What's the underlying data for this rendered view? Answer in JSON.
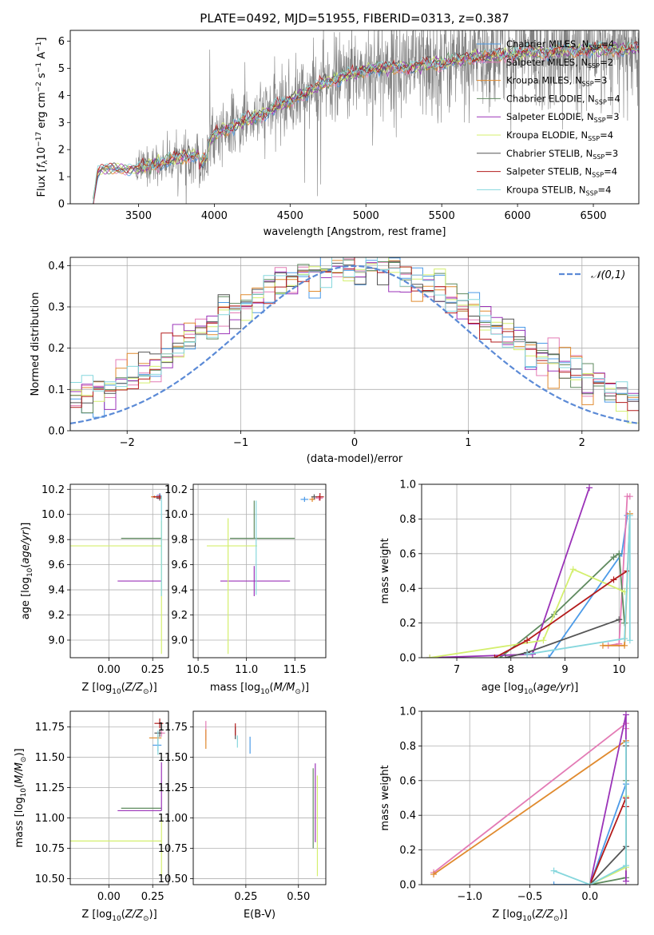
{
  "figure_title": "PLATE=0492, MJD=51955, FIBERID=0313, z=0.387",
  "colors": {
    "Chabrier MILES": "#4c9be8",
    "Salpeter MILES": "#e37bb5",
    "Kroupa MILES": "#e08a2e",
    "Chabrier ELODIE": "#5f8a5f",
    "Salpeter ELODIE": "#9b33b8",
    "Kroupa ELODIE": "#d4ef6e",
    "Chabrier STELIB": "#555555",
    "Salpeter STELIB": "#b31b1b",
    "Kroupa STELIB": "#86d7dd",
    "data": "#808080",
    "normal": "#5b8ad6"
  },
  "chart_data": [
    {
      "id": "spectrum",
      "type": "line",
      "title": "PLATE=0492, MJD=51955, FIBERID=0313, z=0.387",
      "xlabel": "wavelength [Angstrom, rest frame]",
      "ylabel": "Flux [f_λ 10^-17 erg cm^-2 s^-1 A^-1]",
      "xlim": [
        3050,
        6800
      ],
      "ylim": [
        0,
        6.4
      ],
      "xticks": [
        3500,
        4000,
        4500,
        5000,
        5500,
        6000,
        6500
      ],
      "yticks": [
        0,
        1,
        2,
        3,
        4,
        5,
        6
      ],
      "legend": [
        {
          "name": "Chabrier MILES",
          "nssp": "4"
        },
        {
          "name": "Salpeter MILES",
          "nssp": "2"
        },
        {
          "name": "Kroupa MILES",
          "nssp": "3"
        },
        {
          "name": "Chabrier ELODIE",
          "nssp": "4"
        },
        {
          "name": "Salpeter ELODIE",
          "nssp": "3"
        },
        {
          "name": "Kroupa ELODIE",
          "nssp": "4"
        },
        {
          "name": "Chabrier STELIB",
          "nssp": "3"
        },
        {
          "name": "Salpeter STELIB",
          "nssp": "4"
        },
        {
          "name": "Kroupa STELIB",
          "nssp": "4"
        }
      ],
      "legend_placement": "right",
      "continuum": {
        "x": [
          3200,
          3230,
          3260,
          3300,
          3400,
          3500,
          3600,
          3700,
          3800,
          3900,
          3950,
          4000,
          4100,
          4200,
          4300,
          4400,
          4500,
          4600,
          4700,
          4800,
          4900,
          5000,
          5100,
          5200,
          5300,
          5400,
          5500,
          5600,
          5700,
          5800,
          5900,
          6000,
          6100,
          6200,
          6300,
          6400,
          6500,
          6600,
          6700,
          6800
        ],
        "y": [
          0,
          1.15,
          1.28,
          1.3,
          1.28,
          1.3,
          1.45,
          1.6,
          1.75,
          1.85,
          2.1,
          2.55,
          2.8,
          3.05,
          3.25,
          3.55,
          3.8,
          4.1,
          4.4,
          4.6,
          4.8,
          4.95,
          5.0,
          5.05,
          5.05,
          5.15,
          5.2,
          5.3,
          5.4,
          5.45,
          5.5,
          5.55,
          5.6,
          5.6,
          5.65,
          5.65,
          5.7,
          5.7,
          5.72,
          5.72
        ]
      },
      "data_noise_start": 3480
    },
    {
      "id": "residuals",
      "type": "histogram",
      "xlabel": "(data-model)/error",
      "ylabel": "Normed distribution",
      "xlim": [
        -2.5,
        2.5
      ],
      "ylim": [
        0,
        0.42
      ],
      "xticks": [
        -2,
        -1,
        0,
        1,
        2
      ],
      "yticks": [
        0.0,
        0.1,
        0.2,
        0.3,
        0.4
      ],
      "legend": [
        {
          "name": "𝒩(0,1)"
        }
      ],
      "legend_placement": "top-right",
      "bin_width": 0.1
    },
    {
      "id": "age-vs-Z",
      "type": "errorbar",
      "xlabel": "Z [log10(Z/Z⊙)]",
      "ylabel": "age  [log10(age/yr)]",
      "xlim": [
        -0.22,
        0.34
      ],
      "ylim": [
        8.86,
        10.24
      ],
      "xticks": [
        0.0,
        0.25
      ],
      "yticks": [
        9.0,
        9.2,
        9.4,
        9.6,
        9.8,
        10.0,
        10.2
      ],
      "points": [
        {
          "series": "Chabrier MILES",
          "x": 0.29,
          "y": 10.15,
          "xerr": [
            0.02,
            0.01
          ],
          "yerr": [
            0.02,
            0.02
          ]
        },
        {
          "series": "Salpeter MILES",
          "x": 0.28,
          "y": 10.14,
          "xerr": [
            0.02,
            0.02
          ],
          "yerr": [
            0.02,
            0.02
          ]
        },
        {
          "series": "Kroupa MILES",
          "x": 0.26,
          "y": 10.14,
          "xerr": [
            0.02,
            0.02
          ],
          "yerr": [
            0.01,
            0.01
          ]
        },
        {
          "series": "Chabrier ELODIE",
          "x": 0.07,
          "y": 9.81,
          "xerr": [
            0.0,
            0.23
          ],
          "yerr": [
            0.0,
            0.0
          ]
        },
        {
          "series": "Salpeter ELODIE",
          "x": 0.05,
          "y": 9.47,
          "xerr": [
            0.0,
            0.25
          ],
          "yerr": [
            0.0,
            0.0
          ]
        },
        {
          "series": "Kroupa ELODIE",
          "x": 0.3,
          "y": 9.75,
          "xerr": [
            0.52,
            0.0
          ],
          "yerr": [
            0.86,
            0.2
          ]
        },
        {
          "series": "Chabrier STELIB",
          "x": 0.29,
          "y": 10.13,
          "xerr": [
            0.02,
            0.01
          ],
          "yerr": [
            0.02,
            0.02
          ]
        },
        {
          "series": "Salpeter STELIB",
          "x": 0.29,
          "y": 10.14,
          "xerr": [
            0.04,
            0.01
          ],
          "yerr": [
            0.02,
            0.02
          ]
        },
        {
          "series": "Kroupa STELIB",
          "x": 0.3,
          "y": 10.0,
          "xerr": [
            0.0,
            0.0
          ],
          "yerr": [
            0.65,
            0.15
          ]
        }
      ]
    },
    {
      "id": "age-vs-mass",
      "type": "errorbar",
      "xlabel": "mass [log10(M/M⊙)]",
      "ylabel": "",
      "xlim": [
        10.45,
        11.82
      ],
      "ylim": [
        8.86,
        10.24
      ],
      "xticks": [
        10.5,
        11.0,
        11.5
      ],
      "yticks": [
        9.0,
        9.2,
        9.4,
        9.6,
        9.8,
        10.0,
        10.2
      ],
      "points": [
        {
          "series": "Chabrier MILES",
          "x": 11.6,
          "y": 10.12,
          "xerr": [
            0.04,
            0.04
          ],
          "yerr": [
            0.02,
            0.02
          ]
        },
        {
          "series": "Salpeter MILES",
          "x": 11.75,
          "y": 10.13,
          "xerr": [
            0.04,
            0.04
          ],
          "yerr": [
            0.02,
            0.02
          ]
        },
        {
          "series": "Kroupa MILES",
          "x": 11.68,
          "y": 10.12,
          "xerr": [
            0.03,
            0.03
          ],
          "yerr": [
            0.02,
            0.02
          ]
        },
        {
          "series": "Chabrier ELODIE",
          "x": 11.08,
          "y": 9.81,
          "xerr": [
            0.25,
            0.42
          ],
          "yerr": [
            0.0,
            0.3
          ]
        },
        {
          "series": "Salpeter ELODIE",
          "x": 11.08,
          "y": 9.47,
          "xerr": [
            0.35,
            0.37
          ],
          "yerr": [
            0.12,
            0.12
          ]
        },
        {
          "series": "Kroupa ELODIE",
          "x": 10.81,
          "y": 9.75,
          "xerr": [
            0.22,
            0.3
          ],
          "yerr": [
            0.86,
            0.22
          ]
        },
        {
          "series": "Chabrier STELIB",
          "x": 11.7,
          "y": 10.14,
          "xerr": [
            0.03,
            0.03
          ],
          "yerr": [
            0.02,
            0.02
          ]
        },
        {
          "series": "Salpeter STELIB",
          "x": 11.76,
          "y": 10.14,
          "xerr": [
            0.04,
            0.04
          ],
          "yerr": [
            0.03,
            0.03
          ]
        },
        {
          "series": "Kroupa STELIB",
          "x": 11.1,
          "y": 9.81,
          "xerr": [
            0.0,
            0.0
          ],
          "yerr": [
            0.45,
            0.3
          ]
        }
      ]
    },
    {
      "id": "weight-vs-age",
      "type": "line",
      "xlabel": "age  [log10(age/yr)]",
      "ylabel": "mass weight",
      "xlim": [
        6.35,
        10.35
      ],
      "ylim": [
        0.0,
        1.0
      ],
      "xticks": [
        7,
        8,
        9,
        10
      ],
      "yticks": [
        0.0,
        0.2,
        0.4,
        0.6,
        0.8,
        1.0
      ],
      "series": [
        {
          "name": "Chabrier MILES",
          "x": [
            8.7,
            10.05,
            10.15
          ],
          "y": [
            0.0,
            0.6,
            0.82
          ]
        },
        {
          "name": "Salpeter MILES",
          "x": [
            9.8,
            10.0,
            10.15,
            10.2
          ],
          "y": [
            0.07,
            0.08,
            0.93,
            0.93
          ]
        },
        {
          "name": "Kroupa MILES",
          "x": [
            9.7,
            10.1,
            10.2
          ],
          "y": [
            0.07,
            0.07,
            0.83
          ]
        },
        {
          "name": "Chabrier ELODIE",
          "x": [
            7.8,
            8.8,
            9.9,
            10.0,
            10.1
          ],
          "y": [
            0.0,
            0.25,
            0.58,
            0.6,
            0.2
          ]
        },
        {
          "name": "Salpeter ELODIE",
          "x": [
            6.5,
            8.4,
            9.45
          ],
          "y": [
            0.0,
            0.02,
            0.98
          ]
        },
        {
          "name": "Kroupa ELODIE",
          "x": [
            6.5,
            8.6,
            9.15,
            10.1
          ],
          "y": [
            0.0,
            0.1,
            0.51,
            0.38
          ]
        },
        {
          "name": "Chabrier STELIB",
          "x": [
            7.9,
            8.3,
            10.0
          ],
          "y": [
            0.0,
            0.03,
            0.22
          ]
        },
        {
          "name": "Salpeter STELIB",
          "x": [
            7.7,
            8.3,
            9.9,
            10.15
          ],
          "y": [
            0.0,
            0.1,
            0.45,
            0.5
          ]
        },
        {
          "name": "Kroupa STELIB",
          "x": [
            8.3,
            10.1,
            10.2,
            10.2
          ],
          "y": [
            0.02,
            0.11,
            0.82,
            0.1
          ]
        }
      ]
    },
    {
      "id": "mass-vs-Z",
      "type": "errorbar",
      "xlabel": "Z [log10(Z/Z⊙)]",
      "ylabel": "mass [log10(M/M⊙)]",
      "xlim": [
        -0.22,
        0.34
      ],
      "ylim": [
        10.45,
        11.88
      ],
      "xticks": [
        0.0,
        0.25
      ],
      "yticks": [
        10.5,
        10.75,
        11.0,
        11.25,
        11.5,
        11.75
      ],
      "points": [
        {
          "series": "Chabrier MILES",
          "x": 0.28,
          "y": 11.6,
          "xerr": [
            0.03,
            0.02
          ],
          "yerr": [
            0.05,
            0.05
          ]
        },
        {
          "series": "Salpeter MILES",
          "x": 0.3,
          "y": 11.7,
          "xerr": [
            0.02,
            0.02
          ],
          "yerr": [
            0.03,
            0.03
          ]
        },
        {
          "series": "Kroupa MILES",
          "x": 0.28,
          "y": 11.66,
          "xerr": [
            0.05,
            0.02
          ],
          "yerr": [
            0.02,
            0.02
          ]
        },
        {
          "series": "Chabrier ELODIE",
          "x": 0.3,
          "y": 11.08,
          "xerr": [
            0.23,
            0.0
          ],
          "yerr": [
            0.0,
            0.0
          ]
        },
        {
          "series": "Salpeter ELODIE",
          "x": 0.3,
          "y": 11.06,
          "xerr": [
            0.25,
            0.0
          ],
          "yerr": [
            0.0,
            0.4
          ]
        },
        {
          "series": "Kroupa ELODIE",
          "x": 0.3,
          "y": 10.81,
          "xerr": [
            0.52,
            0.0
          ],
          "yerr": [
            0.3,
            0.2
          ]
        },
        {
          "series": "Chabrier STELIB",
          "x": 0.29,
          "y": 11.7,
          "xerr": [
            0.03,
            0.01
          ],
          "yerr": [
            0.03,
            0.03
          ]
        },
        {
          "series": "Salpeter STELIB",
          "x": 0.29,
          "y": 11.78,
          "xerr": [
            0.03,
            0.02
          ],
          "yerr": [
            0.04,
            0.04
          ]
        },
        {
          "series": "Kroupa STELIB",
          "x": 0.28,
          "y": 11.62,
          "xerr": [
            0.0,
            0.0
          ],
          "yerr": [
            0.1,
            0.1
          ]
        }
      ]
    },
    {
      "id": "mass-vs-ebv",
      "type": "errorbar",
      "xlabel": "E(B-V)",
      "ylabel": "",
      "xlim": [
        0.0,
        0.63
      ],
      "ylim": [
        10.45,
        11.88
      ],
      "xticks": [
        0.25,
        0.5
      ],
      "yticks": [
        10.5,
        10.75,
        11.0,
        11.25,
        11.5,
        11.75
      ],
      "points": [
        {
          "series": "Chabrier MILES",
          "x": 0.27,
          "y": 11.6,
          "xerr": [
            0.0,
            0.0
          ],
          "yerr": [
            0.07,
            0.07
          ]
        },
        {
          "series": "Salpeter MILES",
          "x": 0.06,
          "y": 11.72,
          "xerr": [
            0.0,
            0.0
          ],
          "yerr": [
            0.08,
            0.08
          ]
        },
        {
          "series": "Kroupa MILES",
          "x": 0.06,
          "y": 11.65,
          "xerr": [
            0.0,
            0.0
          ],
          "yerr": [
            0.08,
            0.08
          ]
        },
        {
          "series": "Chabrier ELODIE",
          "x": 0.57,
          "y": 11.08,
          "xerr": [
            0.0,
            0.0
          ],
          "yerr": [
            0.33,
            0.33
          ]
        },
        {
          "series": "Salpeter ELODIE",
          "x": 0.58,
          "y": 11.1,
          "xerr": [
            0.0,
            0.0
          ],
          "yerr": [
            0.3,
            0.35
          ]
        },
        {
          "series": "Kroupa ELODIE",
          "x": 0.59,
          "y": 10.9,
          "xerr": [
            0.0,
            0.0
          ],
          "yerr": [
            0.38,
            0.45
          ]
        },
        {
          "series": "Chabrier STELIB",
          "x": 0.2,
          "y": 11.7,
          "xerr": [
            0.0,
            0.0
          ],
          "yerr": [
            0.05,
            0.05
          ]
        },
        {
          "series": "Salpeter STELIB",
          "x": 0.2,
          "y": 11.73,
          "xerr": [
            0.0,
            0.0
          ],
          "yerr": [
            0.05,
            0.05
          ]
        },
        {
          "series": "Kroupa STELIB",
          "x": 0.21,
          "y": 11.63,
          "xerr": [
            0.0,
            0.0
          ],
          "yerr": [
            0.05,
            0.05
          ]
        }
      ]
    },
    {
      "id": "weight-vs-Z",
      "type": "line",
      "xlabel": "Z [log10(Z/Z⊙)]",
      "ylabel": "mass weight",
      "xlim": [
        -1.4,
        0.4
      ],
      "ylim": [
        0.0,
        1.0
      ],
      "xticks": [
        -1.0,
        -0.5,
        0.0
      ],
      "yticks": [
        0.0,
        0.2,
        0.4,
        0.6,
        0.8,
        1.0
      ],
      "series": [
        {
          "name": "Chabrier MILES",
          "x": [
            -0.3,
            0.0,
            0.3,
            0.3
          ],
          "y": [
            0.0,
            0.0,
            0.58,
            0.82
          ]
        },
        {
          "name": "Salpeter MILES",
          "x": [
            -1.3,
            0.3,
            0.3
          ],
          "y": [
            0.07,
            0.93,
            0.9
          ]
        },
        {
          "name": "Kroupa MILES",
          "x": [
            -1.3,
            0.3,
            0.3
          ],
          "y": [
            0.06,
            0.83,
            0.5
          ]
        },
        {
          "name": "Chabrier ELODIE",
          "x": [
            0.0,
            0.3,
            0.3
          ],
          "y": [
            0.0,
            0.04,
            0.6
          ]
        },
        {
          "name": "Salpeter ELODIE",
          "x": [
            0.0,
            0.3,
            0.3
          ],
          "y": [
            0.0,
            0.98,
            0.02
          ]
        },
        {
          "name": "Kroupa ELODIE",
          "x": [
            0.0,
            0.3,
            0.3
          ],
          "y": [
            0.0,
            0.1,
            0.51
          ]
        },
        {
          "name": "Chabrier STELIB",
          "x": [
            0.0,
            0.3,
            0.3
          ],
          "y": [
            0.0,
            0.22,
            0.8
          ]
        },
        {
          "name": "Salpeter STELIB",
          "x": [
            0.0,
            0.3,
            0.3
          ],
          "y": [
            0.0,
            0.5,
            0.45
          ]
        },
        {
          "name": "Kroupa STELIB",
          "x": [
            -0.3,
            0.0,
            0.3,
            0.3
          ],
          "y": [
            0.08,
            0.0,
            0.11,
            0.82
          ]
        }
      ]
    }
  ]
}
